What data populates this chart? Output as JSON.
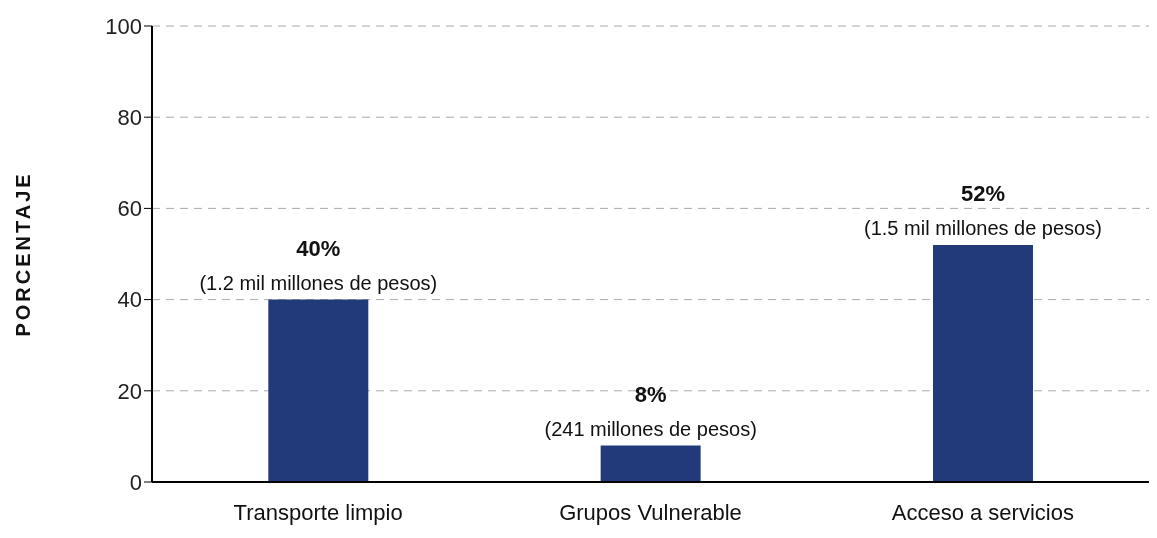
{
  "chart_data": {
    "type": "bar",
    "ylabel": "PORCENTAJE",
    "categories": [
      "Transporte limpio",
      "Grupos Vulnerable",
      "Acceso a servicios"
    ],
    "values": [
      40,
      8,
      52
    ],
    "color": "#233a7a",
    "value_labels": [
      "40%",
      "8%",
      "52%"
    ],
    "annotations": [
      {
        "text": "(1.2 mil millones de pesos)",
        "x": "Transporte limpio",
        "y": 40
      },
      {
        "text": "(241 millones de pesos)",
        "x": "Grupos Vulnerable",
        "y": 8
      },
      {
        "text": "(1.5 mil millones de pesos)",
        "x": "Acceso a servicios",
        "y": 52
      }
    ],
    "ylim": [
      0,
      100
    ],
    "yticks": [
      0,
      20,
      40,
      60,
      80,
      100
    ],
    "grid": "y",
    "legend": false
  }
}
